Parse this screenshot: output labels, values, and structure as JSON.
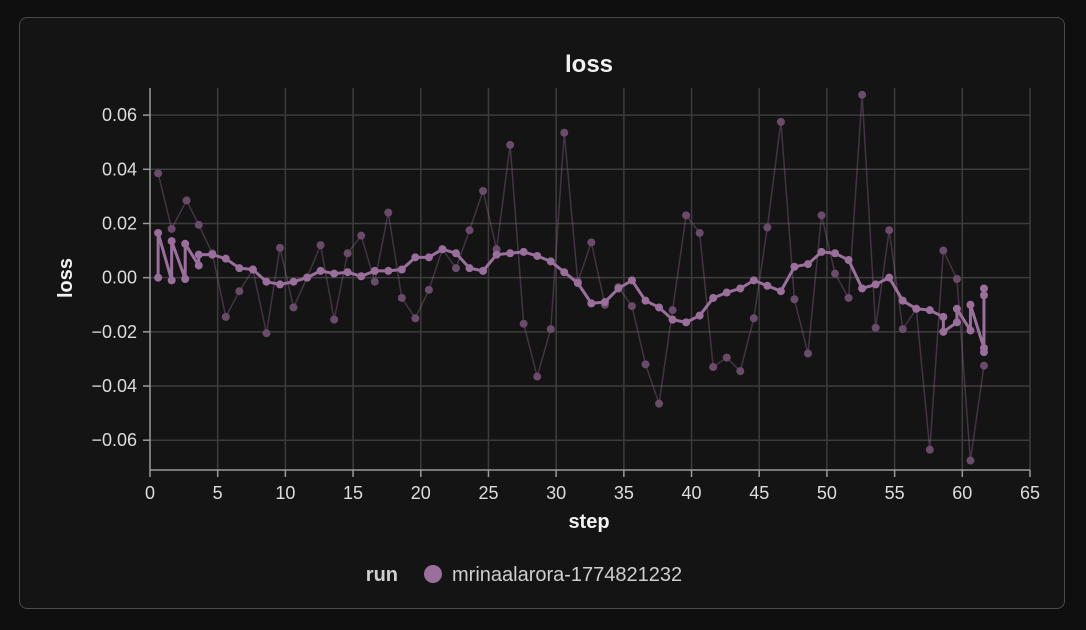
{
  "chart_data": {
    "type": "line",
    "title": "loss",
    "xlabel": "step",
    "ylabel": "loss",
    "xlim": [
      0,
      65
    ],
    "ylim": [
      -0.071,
      0.07
    ],
    "x_ticks": [
      0,
      5,
      10,
      15,
      20,
      25,
      30,
      35,
      40,
      45,
      50,
      55,
      60,
      65
    ],
    "x_tick_labels": [
      "0",
      "5",
      "10",
      "15",
      "20",
      "25",
      "30",
      "35",
      "40",
      "45",
      "50",
      "55",
      "60",
      "65"
    ],
    "y_ticks": [
      0.06,
      0.04,
      0.02,
      0.0,
      -0.02,
      -0.04,
      -0.06
    ],
    "y_tick_labels": [
      "0.06",
      "0.04",
      "0.02",
      "0.00",
      "−0.02",
      "−0.04",
      "−0.06"
    ],
    "grid": true,
    "legend_title": "run",
    "legend_position": "bottom-center",
    "series": [
      {
        "name": "mrinaalarora-1774821232",
        "color": "#9b6f9b",
        "raw": {
          "x": [
            0.6,
            1.6,
            2.7,
            3.6,
            4.6,
            5.6,
            6.6,
            7.6,
            8.6,
            9.6,
            10.6,
            11.6,
            12.6,
            13.6,
            14.6,
            15.6,
            16.6,
            17.6,
            18.6,
            19.6,
            20.6,
            21.6,
            22.6,
            23.6,
            24.6,
            25.6,
            26.6,
            27.6,
            28.6,
            29.6,
            30.6,
            31.6,
            32.6,
            33.6,
            34.6,
            35.6,
            36.6,
            37.6,
            38.6,
            39.6,
            40.6,
            41.6,
            42.6,
            43.6,
            44.6,
            45.6,
            46.6,
            47.6,
            48.6,
            49.6,
            50.6,
            51.6,
            52.6,
            53.6,
            54.6,
            55.6,
            56.6,
            57.6,
            58.6,
            59.6,
            60.6,
            61.6
          ],
          "y": [
            0.0385,
            0.018,
            0.0285,
            0.0195,
            0.009,
            -0.0145,
            -0.005,
            0.003,
            -0.0205,
            0.011,
            -0.011,
            0.0,
            0.012,
            -0.0155,
            0.009,
            0.0155,
            -0.0015,
            0.024,
            -0.0075,
            -0.015,
            -0.0045,
            0.0105,
            0.0035,
            0.0175,
            0.032,
            0.0105,
            0.049,
            -0.017,
            -0.0365,
            -0.019,
            0.0535,
            -0.0015,
            0.013,
            -0.01,
            -0.0035,
            -0.0105,
            -0.032,
            -0.0465,
            -0.012,
            0.023,
            0.0165,
            -0.033,
            -0.0295,
            -0.0345,
            -0.015,
            0.0185,
            0.0575,
            -0.008,
            -0.028,
            0.023,
            0.0015,
            -0.0075,
            0.0675,
            -0.0185,
            0.0175,
            -0.019,
            -0.0115,
            -0.0635,
            0.01,
            -0.0005,
            -0.0675,
            -0.0325
          ]
        },
        "smoothed": {
          "x": [
            0.6,
            0.6,
            1.6,
            1.6,
            2.6,
            2.6,
            3.6,
            3.6,
            4.6,
            5.6,
            6.6,
            7.6,
            8.6,
            9.6,
            10.6,
            11.6,
            12.6,
            13.6,
            14.6,
            15.6,
            16.6,
            17.6,
            18.6,
            19.6,
            20.6,
            21.6,
            22.6,
            23.6,
            24.6,
            25.6,
            26.6,
            27.6,
            28.6,
            29.6,
            30.6,
            31.6,
            32.6,
            33.6,
            34.6,
            35.6,
            36.6,
            37.6,
            38.6,
            39.6,
            40.6,
            41.6,
            42.6,
            43.6,
            44.6,
            45.6,
            46.6,
            47.6,
            48.6,
            49.6,
            50.6,
            51.6,
            52.6,
            53.6,
            54.6,
            55.6,
            56.6,
            57.6,
            58.6,
            58.6,
            59.6,
            59.6,
            60.6,
            60.6,
            61.6,
            61.6,
            61.6,
            61.6
          ],
          "y": [
            0.0,
            0.0165,
            -0.001,
            0.0135,
            -0.0005,
            0.0125,
            0.0045,
            0.0085,
            0.0085,
            0.007,
            0.0035,
            0.003,
            -0.0015,
            -0.0025,
            -0.0015,
            0.0,
            0.0025,
            0.0015,
            0.002,
            0.0005,
            0.0025,
            0.0025,
            0.003,
            0.0075,
            0.0075,
            0.0105,
            0.009,
            0.0035,
            0.0025,
            0.0085,
            0.009,
            0.0095,
            0.008,
            0.006,
            0.002,
            -0.002,
            -0.0095,
            -0.009,
            -0.004,
            -0.001,
            -0.0085,
            -0.011,
            -0.0155,
            -0.0165,
            -0.014,
            -0.0075,
            -0.0055,
            -0.004,
            -0.001,
            -0.003,
            -0.005,
            0.004,
            0.005,
            0.0095,
            0.009,
            0.0065,
            -0.004,
            -0.0025,
            0.0,
            -0.0085,
            -0.0115,
            -0.012,
            -0.0145,
            -0.02,
            -0.0165,
            -0.0115,
            -0.0195,
            -0.01,
            -0.026,
            -0.0065,
            -0.0275,
            -0.004
          ]
        }
      }
    ]
  }
}
